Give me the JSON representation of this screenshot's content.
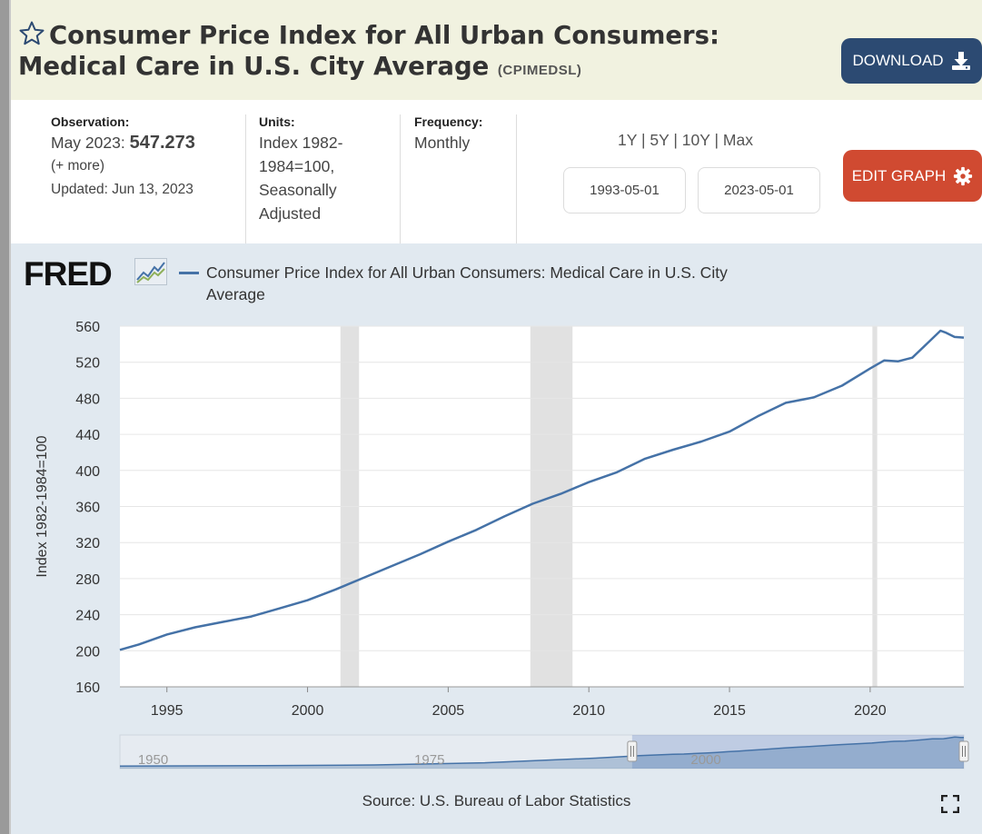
{
  "header": {
    "title": "Consumer Price Index for All Urban Consumers: Medical Care in U.S. City Average",
    "series_id": "(CPIMEDSL)",
    "download_label": "DOWNLOAD"
  },
  "meta": {
    "observation_label": "Observation:",
    "observation_date": "May 2023:",
    "observation_value": "547.273",
    "more": "(+ more)",
    "updated": "Updated: Jun 13, 2023",
    "units_label": "Units:",
    "units_value": "Index 1982-1984=100, Seasonally Adjusted",
    "frequency_label": "Frequency:",
    "frequency_value": "Monthly"
  },
  "controls": {
    "range_1y": "1Y",
    "range_5y": "5Y",
    "range_10y": "10Y",
    "range_max": "Max",
    "separator": "|",
    "start_date": "1993-05-01",
    "end_date": "2023-05-01",
    "edit_label": "EDIT GRAPH"
  },
  "chart_area": {
    "logo": "FRED",
    "source": "Source: U.S. Bureau of Labor Statistics"
  },
  "colors": {
    "series": "#4572a7",
    "recession": "#e1e1e1",
    "download_button": "#2c4a72",
    "edit_button": "#d04a31",
    "header_bg": "#f1f2e0",
    "chart_bg": "#e1e9f0"
  },
  "chart_data": {
    "type": "line",
    "title": "",
    "xlabel": "",
    "ylabel": "Index 1982-1984=100",
    "xlim": [
      1993.33,
      2023.33
    ],
    "ylim": [
      160,
      560
    ],
    "x_ticks": [
      1995,
      2000,
      2005,
      2010,
      2015,
      2020
    ],
    "y_ticks": [
      160,
      200,
      240,
      280,
      320,
      360,
      400,
      440,
      480,
      520,
      560
    ],
    "grid": "horizontal",
    "legend": "top",
    "series": [
      {
        "name": "Consumer Price Index for All Urban Consumers: Medical Care in U.S. City Average",
        "x": [
          1993.33,
          1994.0,
          1995.0,
          1996.0,
          1997.0,
          1998.0,
          1999.0,
          2000.0,
          2001.0,
          2002.0,
          2003.0,
          2004.0,
          2005.0,
          2006.0,
          2007.0,
          2008.0,
          2009.0,
          2010.0,
          2011.0,
          2012.0,
          2013.0,
          2014.0,
          2015.0,
          2016.0,
          2017.0,
          2018.0,
          2019.0,
          2020.0,
          2020.5,
          2021.0,
          2021.5,
          2022.0,
          2022.5,
          2022.67,
          2023.0,
          2023.33
        ],
        "y": [
          201,
          207,
          218,
          226,
          232,
          238,
          247,
          256,
          268,
          281,
          294,
          307,
          321,
          334,
          349,
          363,
          374,
          387,
          398,
          413,
          423,
          432,
          443,
          460,
          475,
          481,
          494,
          513,
          522,
          521,
          525,
          540,
          555,
          553,
          548,
          547.273
        ]
      }
    ],
    "recessions": [
      [
        2001.17,
        2001.83
      ],
      [
        2007.92,
        2009.42
      ],
      [
        2020.08,
        2020.25
      ]
    ],
    "navigator": {
      "x_ticks": [
        1950,
        1975,
        2000
      ],
      "range": [
        1947,
        2023.33
      ],
      "selected": [
        1993.33,
        2023.33
      ]
    }
  }
}
